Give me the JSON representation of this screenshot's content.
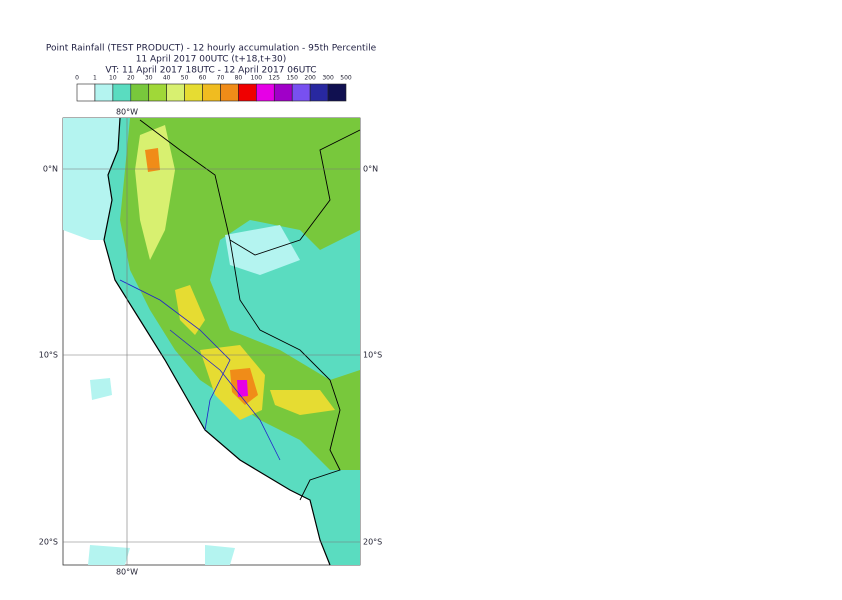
{
  "header": {
    "title": "Point Rainfall (TEST PRODUCT) - 12 hourly accumulation - 95th Percentile",
    "line2": "11 April 2017 00UTC (t+18,t+30)",
    "line3": "VT: 11 April 2017 18UTC - 12 April 2017 06UTC"
  },
  "legend": {
    "thresholds": [
      0,
      1,
      10,
      20,
      30,
      40,
      50,
      60,
      70,
      80,
      100,
      125,
      150,
      200,
      300,
      500
    ],
    "colors": [
      "#ffffff",
      "#b4f4f0",
      "#5adcc0",
      "#78c83c",
      "#a0d838",
      "#d8f070",
      "#e6dc32",
      "#f0bc20",
      "#f08c18",
      "#f00000",
      "#e600e6",
      "#a000c8",
      "#7850f0",
      "#2828a0",
      "#101050"
    ]
  },
  "map": {
    "lon_labels": [
      "80°W"
    ],
    "lat_labels": [
      "0°N",
      "10°S",
      "20°S"
    ]
  }
}
